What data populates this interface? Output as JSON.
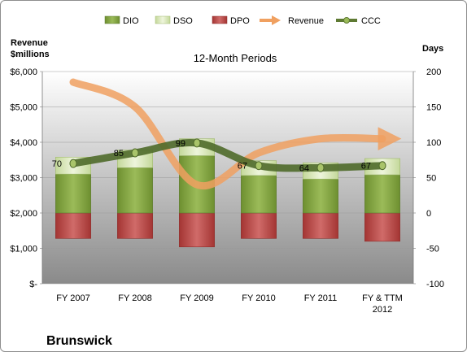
{
  "chart_data": {
    "type": "bar",
    "title": "12-Month Periods",
    "company": "Brunswick",
    "left_axis_label": [
      "Revenue",
      "$millions"
    ],
    "right_axis_label": "Days",
    "categories": [
      [
        "FY 2007"
      ],
      [
        "FY 2008"
      ],
      [
        "FY 2009"
      ],
      [
        "FY 2010"
      ],
      [
        "FY 2011"
      ],
      [
        "FY & TTM",
        "2012"
      ]
    ],
    "left_axis": {
      "min": 0,
      "max": 6000,
      "ticks": [
        "$-",
        "$1,000",
        "$2,000",
        "$3,000",
        "$4,000",
        "$5,000",
        "$6,000"
      ]
    },
    "right_axis": {
      "min": -100,
      "max": 200,
      "ticks": [
        "-100",
        "-50",
        "0",
        "50",
        "100",
        "150",
        "200"
      ]
    },
    "legend": [
      "DIO",
      "DSO",
      "DPO",
      "Revenue",
      "CCC"
    ],
    "series": [
      {
        "name": "DIO",
        "axis": "right",
        "values": [
          55,
          64,
          81,
          53,
          48,
          54
        ],
        "color": "#7f9f3a"
      },
      {
        "name": "DSO",
        "axis": "right",
        "values": [
          24,
          25,
          24,
          21,
          23,
          23
        ],
        "color": "#d8e6b4"
      },
      {
        "name": "DPO",
        "axis": "right",
        "values": [
          -36,
          -36,
          -48,
          -36,
          -36,
          -40
        ],
        "color": "#b94544"
      },
      {
        "name": "Revenue",
        "axis": "left",
        "values": [
          5700,
          5000,
          2800,
          3700,
          4100,
          4100
        ],
        "color": "#f0a060"
      },
      {
        "name": "CCC",
        "axis": "right",
        "values": [
          70,
          85,
          99,
          67,
          64,
          67
        ],
        "color": "#5e7a33"
      }
    ],
    "data_labels": [
      "70",
      "85",
      "99",
      "67",
      "64",
      "67"
    ]
  }
}
